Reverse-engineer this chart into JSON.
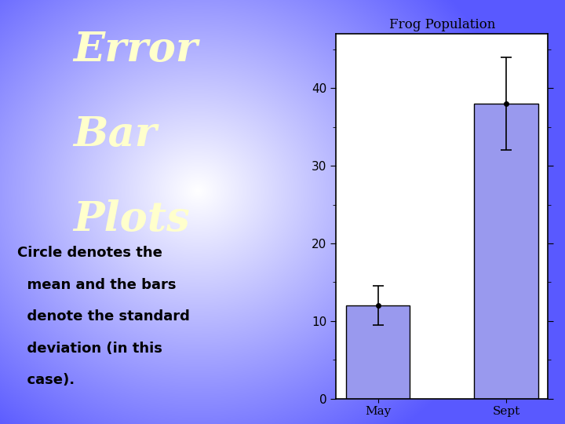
{
  "title": "Frog Population",
  "categories": [
    "May",
    "Sept"
  ],
  "means": [
    12.0,
    38.0
  ],
  "errors": [
    2.5,
    6.0
  ],
  "bar_color": "#9999ee",
  "bar_edgecolor": "#000000",
  "ylim": [
    0,
    47
  ],
  "yticks": [
    0,
    10,
    20,
    30,
    40
  ],
  "marker_color": "black",
  "marker_size": 4,
  "title_color": "#ffffcc",
  "caption_color": "#000000",
  "chart_bg": "#ffffff",
  "purple_color": [
    0.35,
    0.35,
    1.0
  ],
  "white_color": [
    1.0,
    1.0,
    1.0
  ]
}
